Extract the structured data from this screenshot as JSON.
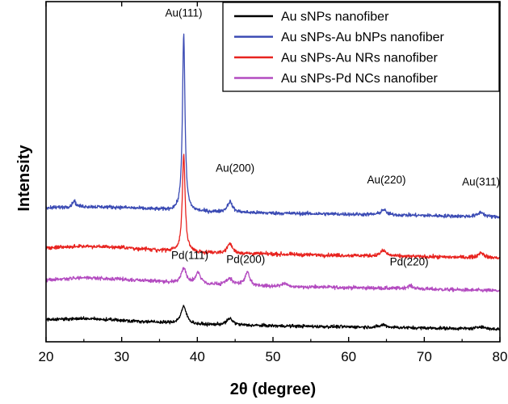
{
  "chart_data": {
    "type": "line",
    "title": "",
    "xlabel": "2θ (degree)",
    "ylabel": "Intensity",
    "xlim": [
      20,
      80
    ],
    "x_ticks": [
      20,
      30,
      40,
      50,
      60,
      70,
      80
    ],
    "y_ticks_shown": false,
    "grid": false,
    "legend": {
      "position": "top-right",
      "entries": [
        "Au sNPs nanofiber",
        "Au sNPs-Au bNPs nanofiber",
        "Au sNPs-Au NRs nanofiber",
        "Au sNPs-Pd NCs nanofiber"
      ]
    },
    "series": [
      {
        "name": "Au sNPs nanofiber",
        "color": "#000000",
        "baseline": 0.105,
        "shape": [
          [
            20,
            0.0
          ],
          [
            25,
            0.004
          ],
          [
            30,
            -0.004
          ],
          [
            35,
            -0.014
          ],
          [
            40,
            -0.024
          ],
          [
            50,
            -0.03
          ],
          [
            60,
            -0.035
          ],
          [
            70,
            -0.04
          ],
          [
            80,
            -0.046
          ]
        ],
        "peaks": [
          [
            38.2,
            0.08,
            0.45
          ],
          [
            44.3,
            0.03,
            0.5
          ],
          [
            64.6,
            0.012,
            0.5
          ],
          [
            77.5,
            0.012,
            0.5
          ]
        ],
        "noise": 0.0075
      },
      {
        "name": "Au sNPs-Pd NCs nanofiber",
        "color": "#b34bc0",
        "baseline": 0.29,
        "shape": [
          [
            20,
            0.0
          ],
          [
            25,
            0.012
          ],
          [
            30,
            0.004
          ],
          [
            35,
            -0.006
          ],
          [
            40,
            -0.02
          ],
          [
            50,
            -0.03
          ],
          [
            60,
            -0.035
          ],
          [
            70,
            -0.042
          ],
          [
            80,
            -0.05
          ]
        ],
        "peaks": [
          [
            38.2,
            0.07,
            0.4
          ],
          [
            40.1,
            0.06,
            0.35
          ],
          [
            44.3,
            0.03,
            0.5
          ],
          [
            46.6,
            0.06,
            0.4
          ],
          [
            51.5,
            0.015,
            0.4
          ],
          [
            68.1,
            0.014,
            0.5
          ]
        ],
        "noise": 0.0085
      },
      {
        "name": "Au sNPs-Au NRs nanofiber",
        "color": "#e8231f",
        "baseline": 0.44,
        "shape": [
          [
            20,
            0.0
          ],
          [
            25,
            0.01
          ],
          [
            30,
            0.004
          ],
          [
            35,
            -0.01
          ],
          [
            40,
            -0.02
          ],
          [
            50,
            -0.028
          ],
          [
            60,
            -0.034
          ],
          [
            70,
            -0.04
          ],
          [
            80,
            -0.046
          ]
        ],
        "peaks": [
          [
            38.2,
            0.46,
            0.22
          ],
          [
            44.3,
            0.045,
            0.4
          ],
          [
            64.6,
            0.026,
            0.45
          ],
          [
            77.5,
            0.024,
            0.45
          ]
        ],
        "noise": 0.0085
      },
      {
        "name": "Au sNPs-Au bNPs nanofiber",
        "color": "#3b4bb4",
        "baseline": 0.63,
        "shape": [
          [
            20,
            0.0
          ],
          [
            25,
            0.006
          ],
          [
            30,
            0.002
          ],
          [
            35,
            -0.008
          ],
          [
            40,
            -0.018
          ],
          [
            50,
            -0.025
          ],
          [
            60,
            -0.03
          ],
          [
            70,
            -0.036
          ],
          [
            80,
            -0.044
          ]
        ],
        "peaks": [
          [
            23.7,
            0.03,
            0.25
          ],
          [
            38.2,
            0.83,
            0.2
          ],
          [
            44.3,
            0.05,
            0.4
          ],
          [
            64.6,
            0.025,
            0.4
          ],
          [
            77.5,
            0.022,
            0.45
          ]
        ],
        "noise": 0.0085
      }
    ],
    "annotations": [
      {
        "text": "Au(111)",
        "x": 38.2,
        "y": 1.53
      },
      {
        "text": "Au(200)",
        "x": 45.0,
        "y": 0.8
      },
      {
        "text": "Au(220)",
        "x": 65.0,
        "y": 0.745
      },
      {
        "text": "Au(311)",
        "x": 77.5,
        "y": 0.735
      },
      {
        "text": "Pd(111)",
        "x": 39.0,
        "y": 0.39
      },
      {
        "text": "Pd(200)",
        "x": 46.4,
        "y": 0.37
      },
      {
        "text": "Pd(220)",
        "x": 68.0,
        "y": 0.36
      }
    ]
  }
}
